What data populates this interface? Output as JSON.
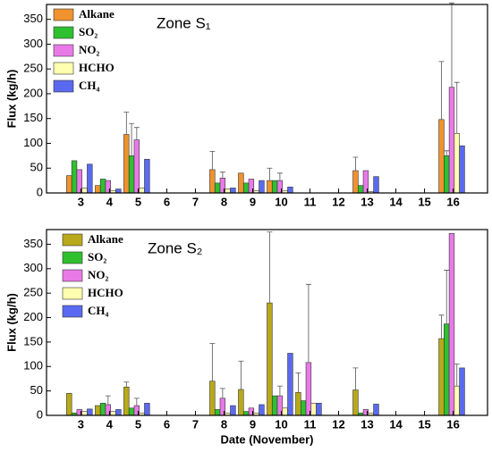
{
  "chart_data": [
    {
      "type": "bar",
      "title": "Zone S₁",
      "ylabel": "Flux (kg/h)",
      "x": [
        3,
        4,
        5,
        6,
        7,
        8,
        9,
        10,
        11,
        12,
        13,
        14,
        15,
        16
      ],
      "xlim": [
        1.8,
        17.2
      ],
      "xticks": [
        3,
        4,
        5,
        6,
        7,
        8,
        9,
        10,
        11,
        12,
        13,
        14,
        15,
        16
      ],
      "ylim": [
        0,
        380
      ],
      "yticks": [
        0,
        50,
        100,
        150,
        200,
        250,
        300,
        350
      ],
      "series": [
        {
          "name": "Alkane",
          "color": "#f0922e",
          "values": [
            35,
            15,
            118,
            null,
            null,
            47,
            40,
            25,
            null,
            null,
            45,
            null,
            null,
            148
          ],
          "errors": [
            null,
            null,
            45,
            null,
            null,
            37,
            null,
            25,
            null,
            null,
            27,
            null,
            null,
            117
          ]
        },
        {
          "name": "SO₂",
          "color": "#2fc02f",
          "values": [
            65,
            28,
            75,
            null,
            null,
            20,
            20,
            25,
            null,
            null,
            15,
            null,
            null,
            75
          ],
          "errors": [
            null,
            null,
            65,
            null,
            null,
            null,
            null,
            null,
            null,
            null,
            null,
            null,
            null,
            10
          ]
        },
        {
          "name": "NO₂",
          "color": "#e87ae8",
          "values": [
            47,
            25,
            107,
            null,
            null,
            30,
            28,
            25,
            null,
            null,
            45,
            null,
            null,
            213
          ],
          "errors": [
            null,
            null,
            25,
            null,
            null,
            12,
            null,
            15,
            null,
            null,
            null,
            null,
            null,
            170
          ]
        },
        {
          "name": "HCHO",
          "color": "#ffffb0",
          "values": [
            10,
            5,
            10,
            null,
            null,
            8,
            5,
            5,
            null,
            null,
            3,
            null,
            null,
            120
          ],
          "errors": [
            null,
            null,
            null,
            null,
            null,
            null,
            null,
            null,
            null,
            null,
            null,
            null,
            null,
            103
          ]
        },
        {
          "name": "CH₄",
          "color": "#5a6af0",
          "values": [
            58,
            8,
            68,
            null,
            null,
            10,
            25,
            12,
            null,
            null,
            33,
            null,
            null,
            95
          ],
          "errors": [
            null,
            null,
            null,
            null,
            null,
            null,
            null,
            null,
            null,
            null,
            null,
            null,
            null,
            null
          ]
        }
      ]
    },
    {
      "type": "bar",
      "title": "Zone S₂",
      "ylabel": "Flux (kg/h)",
      "xlabel": "Date (November)",
      "x": [
        3,
        4,
        5,
        6,
        7,
        8,
        9,
        10,
        11,
        12,
        13,
        14,
        15,
        16
      ],
      "xlim": [
        1.8,
        17.2
      ],
      "xticks": [
        3,
        4,
        5,
        6,
        7,
        8,
        9,
        10,
        11,
        12,
        13,
        14,
        15,
        16
      ],
      "ylim": [
        0,
        380
      ],
      "yticks": [
        0,
        50,
        100,
        150,
        200,
        250,
        300,
        350
      ],
      "series": [
        {
          "name": "Alkane",
          "color": "#b8a91a",
          "values": [
            45,
            20,
            58,
            null,
            null,
            70,
            53,
            230,
            47,
            null,
            52,
            null,
            null,
            157
          ],
          "errors": [
            null,
            null,
            10,
            null,
            null,
            77,
            58,
            145,
            40,
            null,
            45,
            null,
            null,
            48
          ]
        },
        {
          "name": "SO₂",
          "color": "#2fc02f",
          "values": [
            5,
            25,
            15,
            null,
            null,
            12,
            8,
            40,
            30,
            null,
            5,
            null,
            null,
            187
          ],
          "errors": [
            null,
            null,
            null,
            null,
            null,
            null,
            null,
            null,
            null,
            null,
            null,
            null,
            null,
            110
          ]
        },
        {
          "name": "NO₂",
          "color": "#e87ae8",
          "values": [
            12,
            22,
            20,
            null,
            null,
            35,
            15,
            40,
            108,
            null,
            12,
            null,
            null,
            372
          ],
          "errors": [
            null,
            18,
            15,
            null,
            null,
            20,
            null,
            20,
            160,
            null,
            null,
            null,
            null,
            null
          ]
        },
        {
          "name": "HCHO",
          "color": "#ffffb0",
          "values": [
            8,
            8,
            5,
            null,
            null,
            5,
            5,
            15,
            25,
            null,
            5,
            null,
            null,
            60
          ],
          "errors": [
            null,
            null,
            null,
            null,
            null,
            null,
            null,
            null,
            null,
            null,
            null,
            null,
            null,
            45
          ]
        },
        {
          "name": "CH₄",
          "color": "#5a6af0",
          "values": [
            13,
            12,
            25,
            null,
            null,
            20,
            22,
            127,
            25,
            null,
            23,
            null,
            null,
            97
          ],
          "errors": [
            null,
            null,
            null,
            null,
            null,
            null,
            null,
            null,
            null,
            null,
            null,
            null,
            null,
            null
          ]
        }
      ]
    }
  ]
}
